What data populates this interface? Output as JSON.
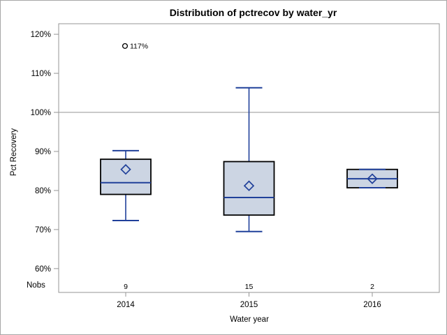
{
  "chart_data": {
    "type": "box",
    "title": "Distribution of pctrecov by water_yr",
    "xlabel": "Water year",
    "ylabel": "Pct Recovery",
    "nobs_label": "Nobs",
    "categories": [
      "2014",
      "2015",
      "2016"
    ],
    "nobs": [
      "9",
      "15",
      "2"
    ],
    "yticks": [
      {
        "value": 60,
        "label": "60%"
      },
      {
        "value": 70,
        "label": "70%"
      },
      {
        "value": 80,
        "label": "80%"
      },
      {
        "value": 90,
        "label": "90%"
      },
      {
        "value": 100,
        "label": "100%"
      },
      {
        "value": 110,
        "label": "110%"
      },
      {
        "value": 120,
        "label": "120%"
      }
    ],
    "ylim": [
      53.9,
      122.7
    ],
    "reference_line": 100,
    "grid": false,
    "series": [
      {
        "category": "2014",
        "n": 9,
        "whisker_low": 72.3,
        "q1": 79.0,
        "median": 82.0,
        "q3": 88.0,
        "whisker_high": 90.2,
        "mean": 85.4,
        "outliers": [
          {
            "value": 117,
            "label": "117%"
          }
        ]
      },
      {
        "category": "2015",
        "n": 15,
        "whisker_low": 69.5,
        "q1": 73.7,
        "median": 78.2,
        "q3": 87.4,
        "whisker_high": 106.3,
        "mean": 81.2,
        "outliers": []
      },
      {
        "category": "2016",
        "n": 2,
        "whisker_low": 80.7,
        "q1": 80.7,
        "median": 83.0,
        "q3": 85.4,
        "whisker_high": 85.4,
        "mean": 83.0,
        "outliers": []
      }
    ],
    "colors": {
      "box_fill": "#ccd5e3",
      "box_border": "#000000",
      "line": "#20409a",
      "reference_line": "#ababab",
      "frame": "#949494",
      "text": "#000000",
      "background": "#ffffff",
      "outer_border": "#a6a6a6"
    }
  }
}
